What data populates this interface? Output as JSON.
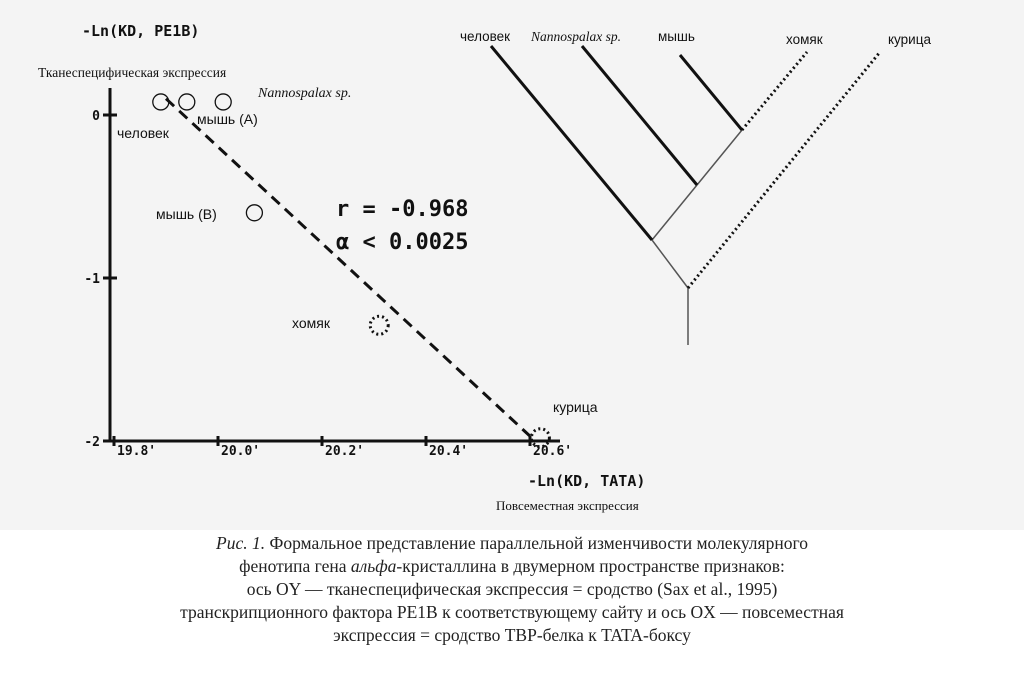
{
  "chart_data": {
    "type": "scatter",
    "ylabel": "-Ln(KD, PE1B)",
    "ylabel_sub": "Тканеспецифическая экспрессия",
    "xlabel": "-Ln(KD, TATA)",
    "xlabel_sub": "Повсеместная экспрессия",
    "x_ticks": [
      "19.8",
      "20.0",
      "20.2",
      "20.4",
      "20.6"
    ],
    "y_ticks": [
      "0",
      "-1",
      "-2"
    ],
    "points": [
      {
        "label": "человек",
        "x": 19.89,
        "y": 0.08,
        "style": "open"
      },
      {
        "label": "Nannospalax sp.",
        "x": 19.94,
        "y": 0.08,
        "style": "open",
        "italic": true
      },
      {
        "label": "мышь (A)",
        "x": 20.01,
        "y": 0.08,
        "style": "open"
      },
      {
        "label": "мышь (B)",
        "x": 20.07,
        "y": -0.6,
        "style": "open"
      },
      {
        "label": "хомяк",
        "x": 20.31,
        "y": -1.29,
        "style": "dotted"
      },
      {
        "label": "курица",
        "x": 20.62,
        "y": -1.98,
        "style": "dotted"
      }
    ],
    "regression": {
      "x": [
        19.9,
        20.6
      ],
      "y": [
        0.1,
        -1.97
      ]
    },
    "stats": {
      "r": "r = -0.968",
      "alpha": "α < 0.0025"
    },
    "tree": {
      "leaves": [
        "человек",
        "Nannospalax sp.",
        "мышь",
        "хомяк",
        "курица"
      ]
    }
  },
  "caption": {
    "line1_prefix": "Рис. 1.",
    "line1_rest": " Формальное представление параллельной изменчивости молекулярного",
    "line2_a": "фенотипа гена ",
    "line2_italic": "альфа",
    "line2_b": "-кристаллина в двумерном пространстве признаков:",
    "line3": "ось OY — тканеспецифическая экспрессия = сродство (Sax et al., 1995)",
    "line4": "транскрипционного фактора PE1B к соответствующему сайту и ось OX — повсеместная",
    "line5": "экспрессия = сродство TBP-белка к TATA-боксу"
  }
}
